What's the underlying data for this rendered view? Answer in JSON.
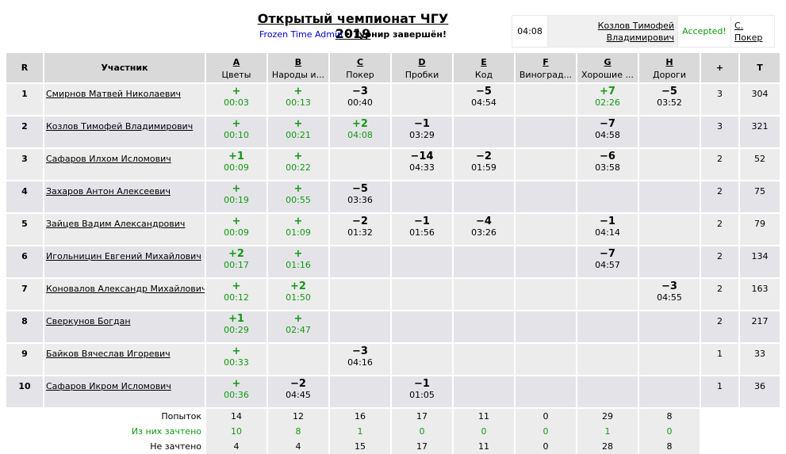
{
  "title": "Открытый чемпионат ЧГУ 2019",
  "subtitle": {
    "admin": "Frozen Time Admin",
    "bullet": "•",
    "status": "Турнир завершён!"
  },
  "last_submission": {
    "time": "04:08",
    "name_line1": "Козлов Тимофей",
    "name_line2": "Владимирович",
    "verdict": "Accepted!",
    "problem_line1": "С.",
    "problem_line2": "Покер"
  },
  "table": {
    "rank_header": "R",
    "name_header": "Участник",
    "plus_header": "+",
    "time_header": "T",
    "problems": [
      {
        "letter": "A",
        "name": "Цветы"
      },
      {
        "letter": "B",
        "name": "Народы и..."
      },
      {
        "letter": "C",
        "name": "Покер"
      },
      {
        "letter": "D",
        "name": "Пробки"
      },
      {
        "letter": "E",
        "name": "Код"
      },
      {
        "letter": "F",
        "name": "Виноград..."
      },
      {
        "letter": "G",
        "name": "Хорошие ..."
      },
      {
        "letter": "H",
        "name": "Дороги"
      }
    ],
    "rows": [
      {
        "rank": "1",
        "name": "Смирнов Матвей Николаевич",
        "solved": "3",
        "penalty": "304",
        "cells": [
          [
            "+",
            "00:03"
          ],
          [
            "+",
            "00:13"
          ],
          [
            "−3",
            "00:40"
          ],
          [
            "",
            ""
          ],
          [
            "−5",
            "04:54"
          ],
          [
            "",
            ""
          ],
          [
            "+7",
            "02:26"
          ],
          [
            "−5",
            "03:52"
          ]
        ]
      },
      {
        "rank": "2",
        "name": "Козлов Тимофей Владимирович",
        "solved": "3",
        "penalty": "321",
        "cells": [
          [
            "+",
            "00:10"
          ],
          [
            "+",
            "00:21"
          ],
          [
            "+2",
            "04:08"
          ],
          [
            "−1",
            "03:29"
          ],
          [
            "",
            ""
          ],
          [
            "",
            ""
          ],
          [
            "−7",
            "04:58"
          ],
          [
            "",
            ""
          ]
        ]
      },
      {
        "rank": "3",
        "name": "Сафаров Илхом Исломович",
        "solved": "2",
        "penalty": "52",
        "cells": [
          [
            "+1",
            "00:09"
          ],
          [
            "+",
            "00:22"
          ],
          [
            "",
            ""
          ],
          [
            "−14",
            "04:33"
          ],
          [
            "−2",
            "01:59"
          ],
          [
            "",
            ""
          ],
          [
            "−6",
            "03:58"
          ],
          [
            "",
            ""
          ]
        ]
      },
      {
        "rank": "4",
        "name": "Захаров Антон Алексеевич",
        "solved": "2",
        "penalty": "75",
        "cells": [
          [
            "+",
            "00:19"
          ],
          [
            "+",
            "00:55"
          ],
          [
            "−5",
            "03:36"
          ],
          [
            "",
            ""
          ],
          [
            "",
            ""
          ],
          [
            "",
            ""
          ],
          [
            "",
            ""
          ],
          [
            "",
            ""
          ]
        ]
      },
      {
        "rank": "5",
        "name": "Зайцев Вадим Александрович",
        "solved": "2",
        "penalty": "79",
        "cells": [
          [
            "+",
            "00:09"
          ],
          [
            "+",
            "01:09"
          ],
          [
            "−2",
            "01:32"
          ],
          [
            "−1",
            "01:56"
          ],
          [
            "−4",
            "03:26"
          ],
          [
            "",
            ""
          ],
          [
            "−1",
            "04:14"
          ],
          [
            "",
            ""
          ]
        ]
      },
      {
        "rank": "6",
        "name": "Игольницин Евгений Михайлович",
        "solved": "2",
        "penalty": "134",
        "cells": [
          [
            "+2",
            "00:17"
          ],
          [
            "+",
            "01:16"
          ],
          [
            "",
            ""
          ],
          [
            "",
            ""
          ],
          [
            "",
            ""
          ],
          [
            "",
            ""
          ],
          [
            "−7",
            "04:57"
          ],
          [
            "",
            ""
          ]
        ]
      },
      {
        "rank": "7",
        "name": "Коновалов Александр Михайлович",
        "solved": "2",
        "penalty": "163",
        "cells": [
          [
            "+",
            "00:12"
          ],
          [
            "+2",
            "01:50"
          ],
          [
            "",
            ""
          ],
          [
            "",
            ""
          ],
          [
            "",
            ""
          ],
          [
            "",
            ""
          ],
          [
            "",
            ""
          ],
          [
            "−3",
            "04:55"
          ]
        ]
      },
      {
        "rank": "8",
        "name": "Сверкунов Богдан",
        "solved": "2",
        "penalty": "217",
        "cells": [
          [
            "+1",
            "00:29"
          ],
          [
            "+",
            "02:47"
          ],
          [
            "",
            ""
          ],
          [
            "",
            ""
          ],
          [
            "",
            ""
          ],
          [
            "",
            ""
          ],
          [
            "",
            ""
          ],
          [
            "",
            ""
          ]
        ]
      },
      {
        "rank": "9",
        "name": "Байков Вячеслав Игоревич",
        "solved": "1",
        "penalty": "33",
        "cells": [
          [
            "+",
            "00:33"
          ],
          [
            "",
            ""
          ],
          [
            "−3",
            "04:16"
          ],
          [
            "",
            ""
          ],
          [
            "",
            ""
          ],
          [
            "",
            ""
          ],
          [
            "",
            ""
          ],
          [
            "",
            ""
          ]
        ]
      },
      {
        "rank": "10",
        "name": "Сафаров Икром Исломович",
        "solved": "1",
        "penalty": "36",
        "cells": [
          [
            "+",
            "00:36"
          ],
          [
            "−2",
            "04:45"
          ],
          [
            "",
            ""
          ],
          [
            "−1",
            "01:05"
          ],
          [
            "",
            ""
          ],
          [
            "",
            ""
          ],
          [
            "",
            ""
          ],
          [
            "",
            ""
          ]
        ]
      }
    ],
    "stats": [
      {
        "label": "Попыток",
        "values": [
          "14",
          "12",
          "16",
          "17",
          "11",
          "0",
          "29",
          "8"
        ]
      },
      {
        "label": "Из них зачтено",
        "values": [
          "10",
          "8",
          "1",
          "0",
          "0",
          "0",
          "1",
          "0"
        ]
      },
      {
        "label": "Не зачтено",
        "values": [
          "4",
          "4",
          "15",
          "17",
          "11",
          "0",
          "28",
          "8"
        ]
      }
    ]
  },
  "colors": {
    "accepted": "#119911",
    "header_bg": "#d9d9d9",
    "admin_link": "#0000cc"
  }
}
